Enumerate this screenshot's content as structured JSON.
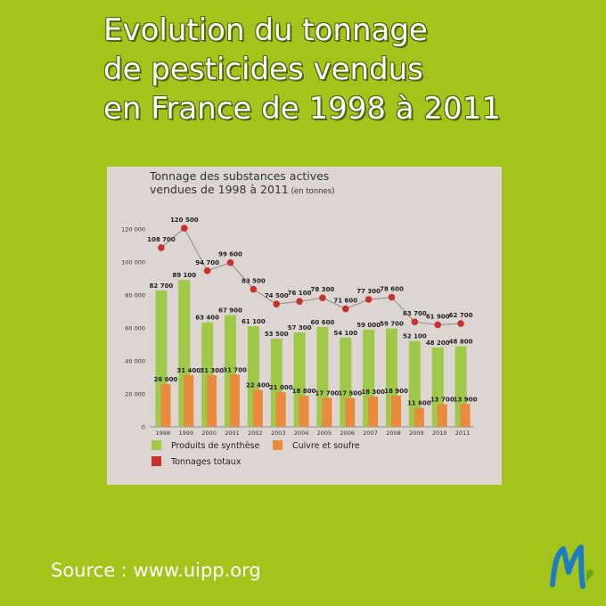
{
  "title_lines": [
    "Evolution du tonnage",
    "de pesticides vendus",
    "en France de 1998 à 2011"
  ],
  "source": "Source : www.uipp.org",
  "logo_letter": "M",
  "colors": {
    "background": "#a2c41b",
    "panel": "#dcd5d1",
    "synthese": "#a0c94a",
    "cuivre": "#e98a3c",
    "totaux": "#c6302f"
  },
  "chart_data": {
    "type": "bar",
    "title": "Tonnage des substances actives",
    "title_line2": "vendues de 1998 à 2011",
    "unit_note": "(en tonnes)",
    "categories": [
      "1998",
      "1999",
      "2000",
      "2001",
      "2002",
      "2003",
      "2004",
      "2005",
      "2006",
      "2007",
      "2008",
      "2009",
      "2010",
      "2011"
    ],
    "series": [
      {
        "name": "Produits de synthèse",
        "kind": "bar",
        "values": [
          82700,
          89100,
          63400,
          67900,
          61100,
          53500,
          57300,
          60600,
          54100,
          59000,
          59700,
          52100,
          48200,
          48800
        ],
        "labels": [
          "82 700",
          "89 100",
          "63 400",
          "67 900",
          "61 100",
          "53 500",
          "57 300",
          "60 600",
          "54 100",
          "59 000",
          "59 700",
          "52 100",
          "48 200",
          "48 800"
        ]
      },
      {
        "name": "Cuivre et soufre",
        "kind": "bar",
        "values": [
          26000,
          31400,
          31300,
          31700,
          22400,
          21000,
          18800,
          17700,
          17500,
          18300,
          18900,
          11600,
          13700,
          13900
        ],
        "labels": [
          "26 000",
          "31 400",
          "31 300",
          "31 700",
          "22 400",
          "21 000",
          "18 800",
          "17 700",
          "17 500",
          "18 300",
          "18 900",
          "11 600",
          "13 700",
          "13 900"
        ]
      },
      {
        "name": "Tonnages totaux",
        "kind": "line",
        "values": [
          108700,
          120500,
          94700,
          99600,
          83500,
          74500,
          76100,
          78300,
          71600,
          77300,
          78600,
          63700,
          61900,
          62700
        ],
        "labels": [
          "108 700",
          "120 500",
          "94 700",
          "99 600",
          "83 500",
          "74 500",
          "76 100",
          "78 300",
          "71 600",
          "77 300",
          "78 600",
          "63 700",
          "61 900",
          "62 700"
        ]
      }
    ],
    "ylim": [
      0,
      120000
    ],
    "yticks": [
      0,
      20000,
      40000,
      60000,
      80000,
      100000,
      120000
    ],
    "ytick_labels": [
      "0",
      "20 000",
      "40 000",
      "60 000",
      "80 000",
      "100 000",
      "120 000"
    ],
    "legend_position": "bottom"
  }
}
